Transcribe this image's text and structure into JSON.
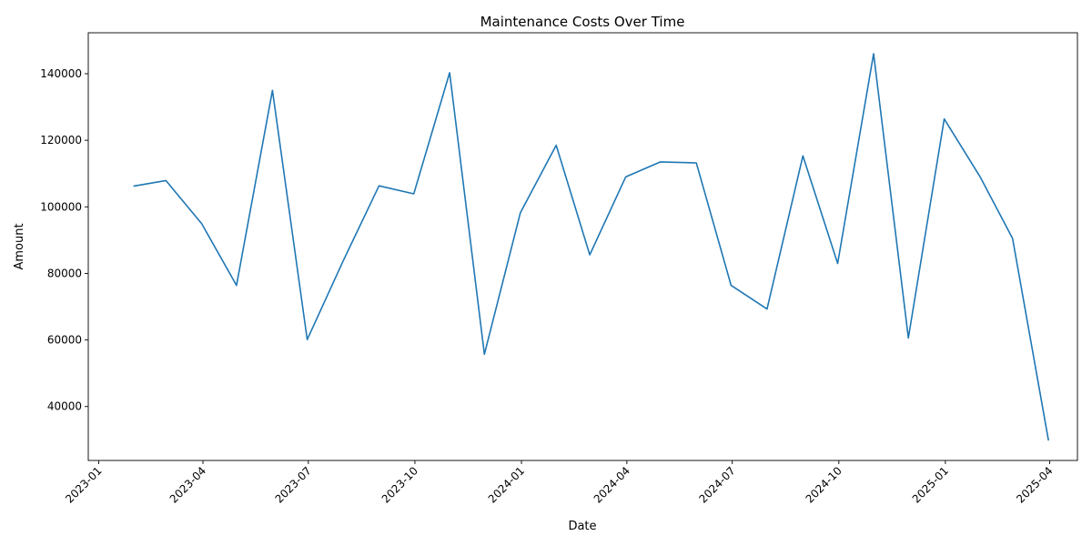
{
  "chart_data": {
    "type": "line",
    "title": "Maintenance Costs Over Time",
    "xlabel": "Date",
    "ylabel": "Amount",
    "x_tick_labels": [
      "2023-01",
      "2023-04",
      "2023-07",
      "2023-10",
      "2024-01",
      "2024-04",
      "2024-07",
      "2024-10",
      "2025-01",
      "2025-04"
    ],
    "x_ticks": [
      "2023-01-01",
      "2023-04-01",
      "2023-07-01",
      "2023-10-01",
      "2024-01-01",
      "2024-04-01",
      "2024-07-01",
      "2024-10-01",
      "2025-01-01",
      "2025-04-01"
    ],
    "y_ticks": [
      40000,
      60000,
      80000,
      100000,
      120000,
      140000
    ],
    "y_tick_labels": [
      "40000",
      "60000",
      "80000",
      "100000",
      "120000",
      "140000"
    ],
    "xlim": [
      "2022-12-23",
      "2025-04-25"
    ],
    "ylim": [
      23800,
      152300
    ],
    "grid": false,
    "line_color": "#1f77b4",
    "series": [
      {
        "x": [
          "2023-01-31",
          "2023-02-28",
          "2023-03-31",
          "2023-04-30",
          "2023-05-31",
          "2023-06-30",
          "2023-07-31",
          "2023-08-31",
          "2023-09-30",
          "2023-10-31",
          "2023-11-30",
          "2023-12-31",
          "2024-01-31",
          "2024-02-29",
          "2024-03-31",
          "2024-04-30",
          "2024-05-31",
          "2024-06-30",
          "2024-07-31",
          "2024-08-31",
          "2024-09-30",
          "2024-10-31",
          "2024-11-30",
          "2024-12-31",
          "2025-01-31",
          "2025-02-28",
          "2025-03-31"
        ],
        "values": [
          106200,
          107900,
          94900,
          76400,
          135000,
          60100,
          83700,
          106300,
          103900,
          140300,
          55700,
          98200,
          118500,
          85600,
          109000,
          113500,
          113200,
          76400,
          69300,
          115300,
          83000,
          146000,
          60600,
          126400,
          109000,
          90500,
          29800
        ]
      }
    ]
  }
}
